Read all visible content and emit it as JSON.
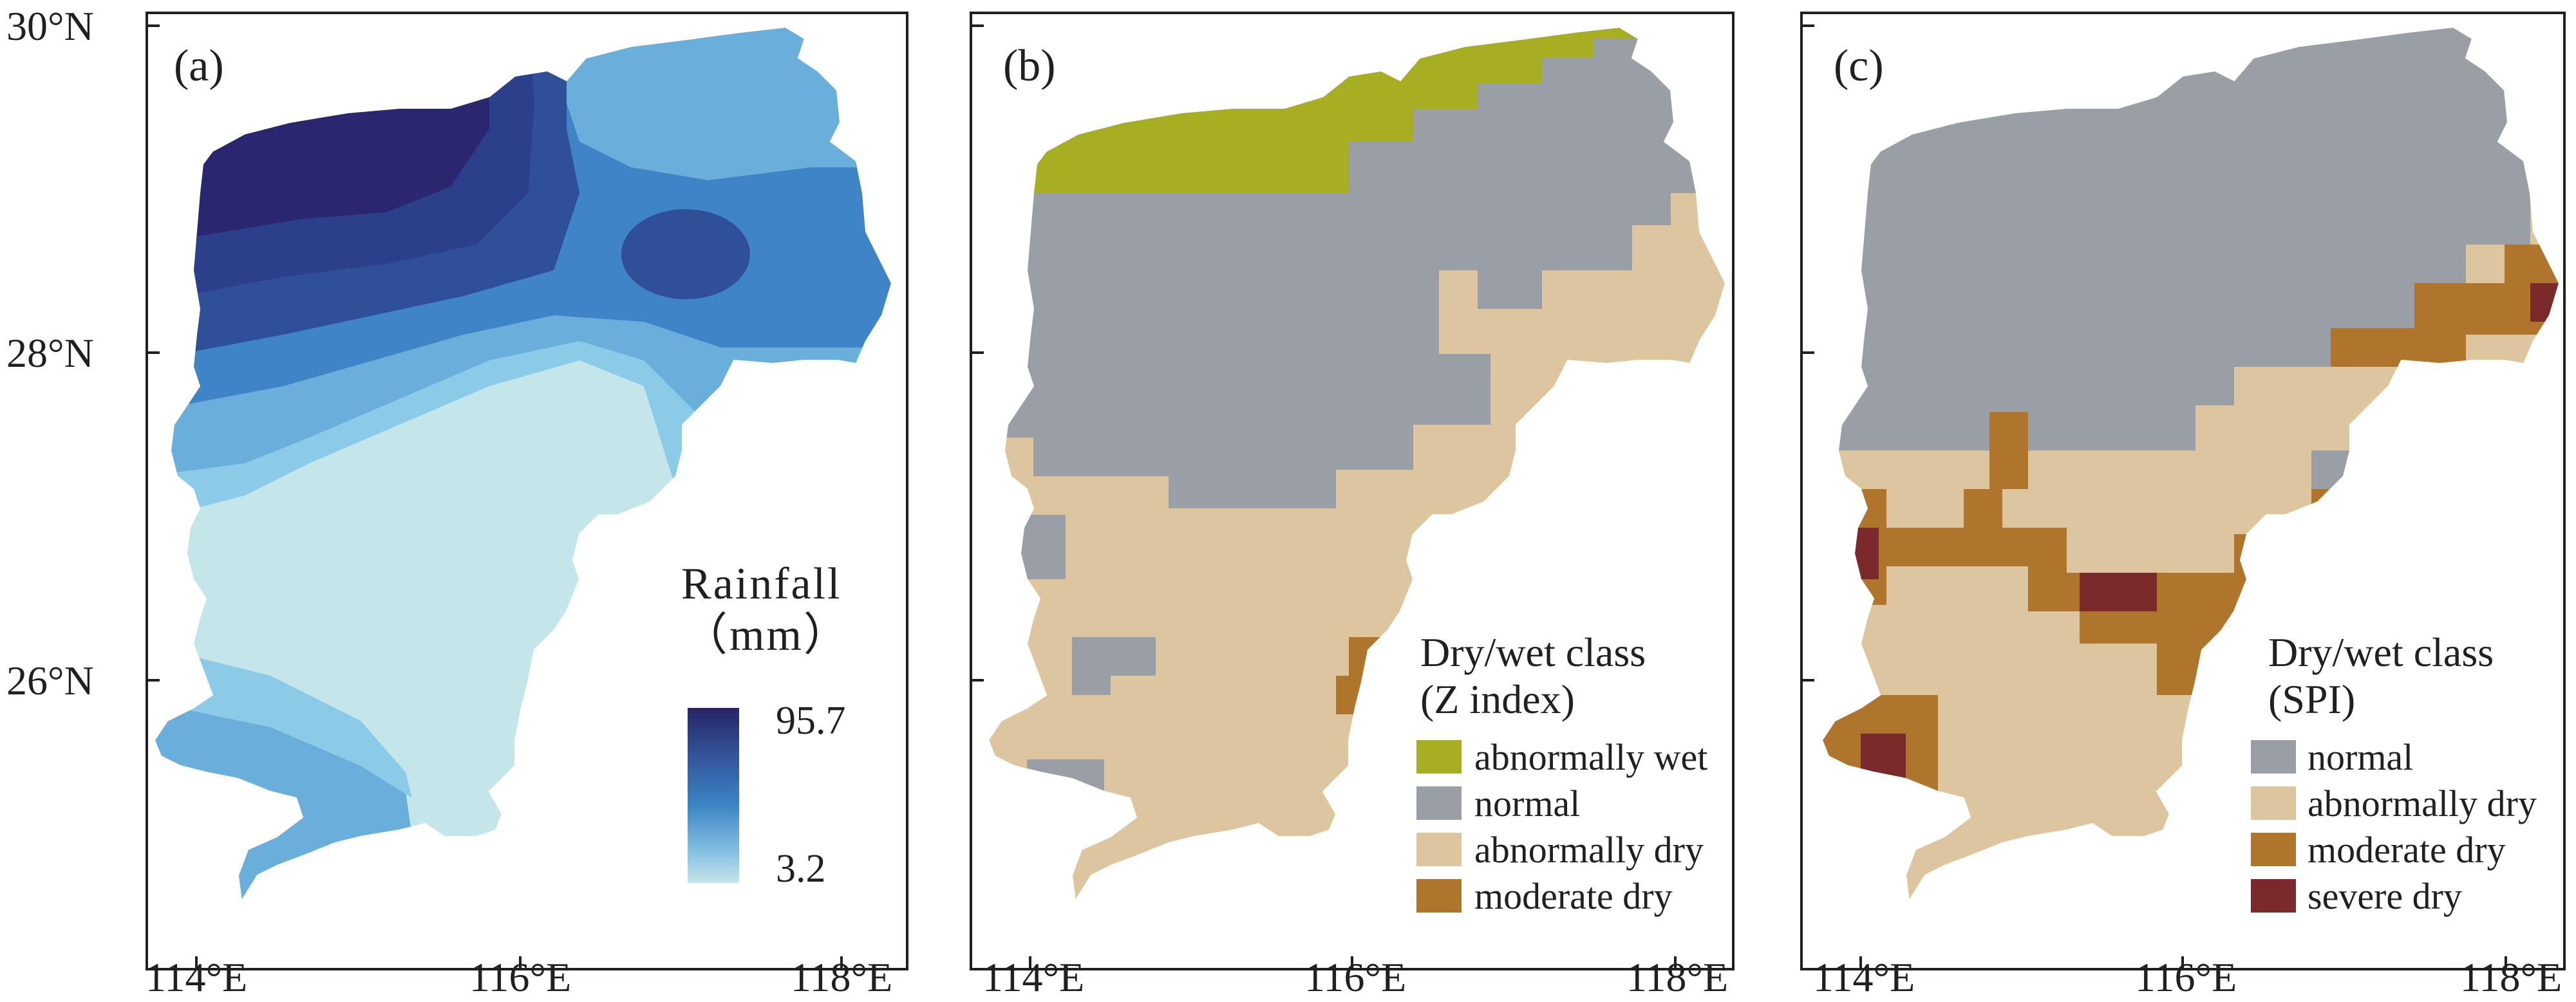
{
  "panels": [
    {
      "label": "(a)",
      "legend": {
        "title_line1": "Rainfall",
        "title_line2": "（mm）",
        "max_label": "95.7",
        "min_label": "3.2",
        "ramp_colors": [
          "#272466",
          "#34589f",
          "#3a84c4",
          "#7fbbe0",
          "#c4e5ea"
        ]
      }
    },
    {
      "label": "(b)",
      "legend": {
        "title_line1": "Dry/wet class",
        "title_line2": "(Z index)",
        "items": [
          {
            "label": "abnormally wet",
            "color": "#a7ae22"
          },
          {
            "label": "normal",
            "color": "#9a9fa6"
          },
          {
            "label": "abnormally dry",
            "color": "#dcc59f"
          },
          {
            "label": "moderate dry",
            "color": "#b0752d"
          }
        ]
      }
    },
    {
      "label": "(c)",
      "legend": {
        "title_line1": "Dry/wet class",
        "title_line2": "(SPI)",
        "items": [
          {
            "label": "normal",
            "color": "#9a9fa6"
          },
          {
            "label": "abnormally dry",
            "color": "#dcc59f"
          },
          {
            "label": "moderate dry",
            "color": "#b0752d"
          },
          {
            "label": "severe dry",
            "color": "#7a2a2a"
          }
        ]
      }
    }
  ],
  "axes": {
    "lat_labels": [
      "30°N",
      "28°N",
      "26°N"
    ],
    "lon_labels": [
      "114°E",
      "116°E",
      "118°E"
    ]
  },
  "colors": {
    "rain_darkest": "#2a2770",
    "rain_dark": "#2f4f98",
    "rain_mid": "#3f84c6",
    "rain_light": "#6aaedc",
    "rain_lighter": "#8ccbe8",
    "rain_lightest": "#c4e5ea",
    "wet": "#a7ae22",
    "normal": "#9a9fa6",
    "abn_dry": "#dcc59f",
    "mod_dry": "#b0752d",
    "sev_dry": "#7a2a2a"
  }
}
